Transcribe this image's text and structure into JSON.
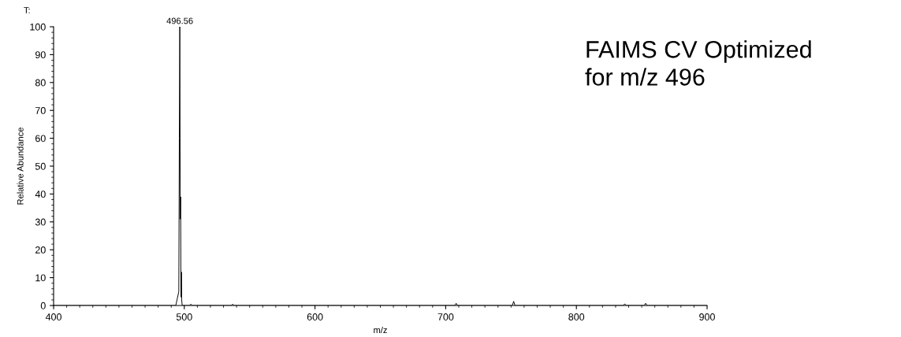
{
  "chart_data": {
    "type": "line",
    "xlabel": "m/z",
    "ylabel": "Relative Abundance",
    "color": "#000000",
    "x": [
      400,
      493.5,
      495.8,
      496.2,
      496.56,
      496.9,
      497.2,
      497.4,
      497.6,
      497.8,
      498.0,
      498.4,
      504,
      505,
      506,
      536,
      537,
      538,
      707,
      708,
      709,
      751,
      752,
      753,
      836,
      837,
      838,
      852,
      853,
      854,
      900
    ],
    "values": [
      0,
      0,
      5,
      60,
      100,
      31,
      39,
      8,
      3,
      12,
      2,
      0,
      0,
      0.5,
      0,
      0,
      0.5,
      0,
      0,
      0.8,
      0,
      0,
      1.5,
      0,
      0,
      0.6,
      0,
      0,
      0.8,
      0,
      0
    ],
    "annotations": [
      "T:",
      {
        "text": "496.56",
        "x": 496.56,
        "y": 100
      },
      "FAIMS CV Optimized\nfor m/z 496"
    ],
    "xlim": [
      400,
      900
    ],
    "xticks": [
      400,
      500,
      600,
      700,
      800,
      900
    ],
    "ylim": [
      0,
      100
    ],
    "yticks": [
      0,
      10,
      20,
      30,
      40,
      50,
      60,
      70,
      80,
      90,
      100
    ],
    "grid": false,
    "legend": false,
    "marker": "none",
    "line_style": "solid"
  }
}
